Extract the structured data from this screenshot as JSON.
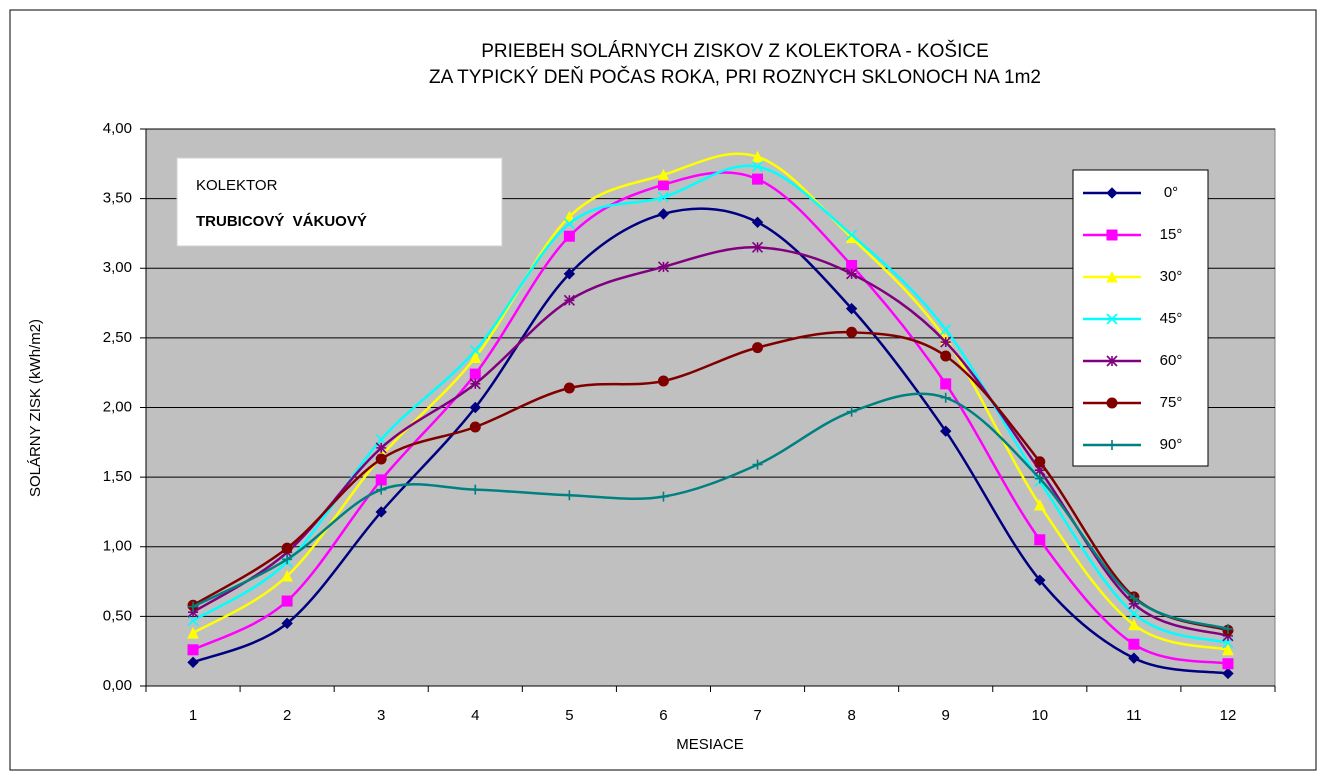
{
  "chart_data": {
    "type": "line",
    "title": "PRIEBEH SOLÁRNYCH ZISKOV Z KOLEKTORA - KOŠICE",
    "subtitle": "ZA TYPICKÝ DEŇ POČAS ROKA, PRI ROZNYCH SKLONOCH NA 1m2",
    "x_label": "MESIACE",
    "y_label": "SOLÁRNY ZISK (kWh/m2)",
    "annotations": [
      "KOLEKTOR",
      "TRUBICOVÝ  VÁKUOVÝ"
    ],
    "categories": [
      "1",
      "2",
      "3",
      "4",
      "5",
      "6",
      "7",
      "8",
      "9",
      "10",
      "11",
      "12"
    ],
    "series": [
      {
        "name": "0°",
        "color": "#000080",
        "marker": "diamond",
        "values": [
          0.17,
          0.45,
          1.25,
          2.0,
          2.96,
          3.39,
          3.33,
          2.71,
          1.83,
          0.76,
          0.2,
          0.09
        ]
      },
      {
        "name": "15°",
        "color": "#ff00ff",
        "marker": "square",
        "values": [
          0.26,
          0.61,
          1.48,
          2.24,
          3.23,
          3.6,
          3.64,
          3.02,
          2.17,
          1.05,
          0.3,
          0.16
        ]
      },
      {
        "name": "30°",
        "color": "#ffff00",
        "marker": "triangle",
        "values": [
          0.38,
          0.79,
          1.65,
          2.36,
          3.37,
          3.67,
          3.8,
          3.22,
          2.49,
          1.3,
          0.44,
          0.26
        ]
      },
      {
        "name": "45°",
        "color": "#00ffff",
        "marker": "x",
        "values": [
          0.47,
          0.89,
          1.77,
          2.41,
          3.32,
          3.51,
          3.73,
          3.24,
          2.56,
          1.47,
          0.52,
          0.31
        ]
      },
      {
        "name": "60°",
        "color": "#800080",
        "marker": "star",
        "values": [
          0.53,
          0.96,
          1.71,
          2.17,
          2.77,
          3.01,
          3.15,
          2.96,
          2.47,
          1.55,
          0.59,
          0.36
        ]
      },
      {
        "name": "75°",
        "color": "#800000",
        "marker": "circle",
        "values": [
          0.58,
          0.99,
          1.63,
          1.86,
          2.14,
          2.19,
          2.43,
          2.54,
          2.37,
          1.61,
          0.64,
          0.4
        ]
      },
      {
        "name": "90°",
        "color": "#008080",
        "marker": "plus",
        "values": [
          0.57,
          0.91,
          1.41,
          1.41,
          1.37,
          1.36,
          1.59,
          1.97,
          2.07,
          1.49,
          0.63,
          0.41
        ]
      }
    ],
    "ylim": [
      0,
      4
    ],
    "yticks": [
      {
        "value": 0,
        "label": "0,00"
      },
      {
        "value": 0.5,
        "label": "0,50"
      },
      {
        "value": 1,
        "label": "1,00"
      },
      {
        "value": 1.5,
        "label": "1,50"
      },
      {
        "value": 2,
        "label": "2,00"
      },
      {
        "value": 2.5,
        "label": "2,50"
      },
      {
        "value": 3,
        "label": "3,00"
      },
      {
        "value": 3.5,
        "label": "3,50"
      },
      {
        "value": 4,
        "label": "4,00"
      }
    ],
    "grid": true,
    "smooth": true,
    "legend": "right",
    "plot_background": "#c0c0c0"
  }
}
